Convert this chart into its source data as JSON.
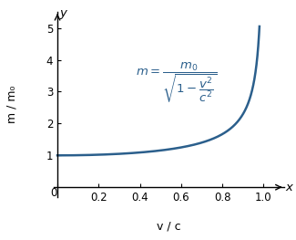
{
  "xlabel": "v / c",
  "ylabel": "m / m₀",
  "axis_label_x": "x",
  "axis_label_y": "y",
  "xlim": [
    -0.02,
    1.1
  ],
  "ylim": [
    -0.3,
    5.5
  ],
  "xticks": [
    0,
    0.2,
    0.4,
    0.6,
    0.8,
    1.0
  ],
  "yticks": [
    0,
    1,
    2,
    3,
    4,
    5
  ],
  "curve_color": "#2b5f8c",
  "curve_linewidth": 1.8,
  "equation_color": "#2b5f8c",
  "equation_fontsize": 9.5,
  "background_color": "#ffffff",
  "tick_fontsize": 8.5,
  "ylabel_fontsize": 9,
  "xlabel_fontsize": 9
}
